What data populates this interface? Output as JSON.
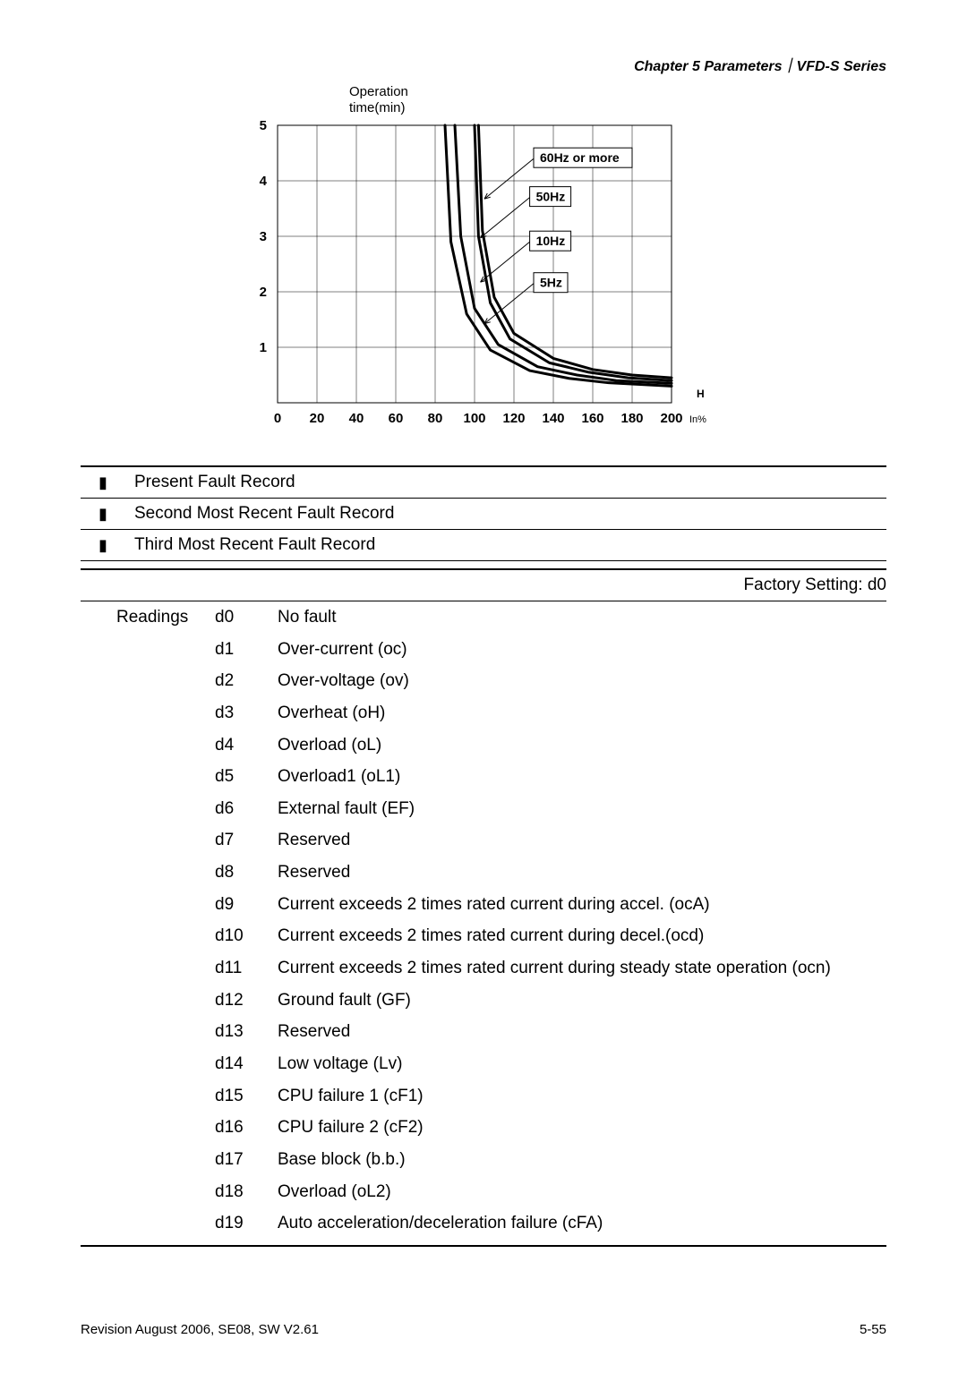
{
  "header": {
    "chapter": "Chapter 5 Parameters",
    "separator": "｜",
    "series": "VFD-S Series"
  },
  "chart": {
    "type": "line",
    "title_line1": "Operation",
    "title_line2": "time(min)",
    "x_axis_unit_label": "In%",
    "x_axis_marker": "H",
    "title_fontsize": 15,
    "axis_font_weight": "bold",
    "tick_fontsize": 15,
    "xlim": [
      0,
      200
    ],
    "ylim": [
      0,
      5
    ],
    "xtick_step": 20,
    "xticks": [
      0,
      20,
      40,
      60,
      80,
      100,
      120,
      140,
      160,
      180,
      200
    ],
    "yticks": [
      1,
      2,
      3,
      4,
      5
    ],
    "line_color": "#000000",
    "line_width_outer": 3,
    "line_width_inner": 2,
    "background_color": "#ffffff",
    "grid_color": "#000000",
    "curve_labels": [
      {
        "text": "60Hz or more",
        "x": 130,
        "y": 4.4
      },
      {
        "text": "50Hz",
        "x": 128,
        "y": 3.7
      },
      {
        "text": "10Hz",
        "x": 128,
        "y": 2.9
      },
      {
        "text": "5Hz",
        "x": 130,
        "y": 2.15
      }
    ],
    "curves": [
      {
        "name": "60Hz",
        "points": [
          [
            102,
            5
          ],
          [
            104,
            3.1
          ],
          [
            110,
            1.9
          ],
          [
            120,
            1.25
          ],
          [
            140,
            0.8
          ],
          [
            160,
            0.6
          ],
          [
            180,
            0.5
          ],
          [
            200,
            0.45
          ]
        ]
      },
      {
        "name": "50Hz",
        "points": [
          [
            100,
            5
          ],
          [
            102,
            3.0
          ],
          [
            108,
            1.8
          ],
          [
            118,
            1.15
          ],
          [
            138,
            0.72
          ],
          [
            158,
            0.55
          ],
          [
            178,
            0.45
          ],
          [
            200,
            0.4
          ]
        ]
      },
      {
        "name": "10Hz",
        "points": [
          [
            90,
            5
          ],
          [
            93,
            3.0
          ],
          [
            100,
            1.7
          ],
          [
            112,
            1.05
          ],
          [
            132,
            0.65
          ],
          [
            152,
            0.5
          ],
          [
            172,
            0.4
          ],
          [
            200,
            0.35
          ]
        ]
      },
      {
        "name": "5Hz",
        "points": [
          [
            85,
            5
          ],
          [
            88,
            2.9
          ],
          [
            96,
            1.6
          ],
          [
            108,
            0.95
          ],
          [
            128,
            0.58
          ],
          [
            148,
            0.44
          ],
          [
            168,
            0.36
          ],
          [
            200,
            0.3
          ]
        ]
      }
    ]
  },
  "fault_records": [
    {
      "label": "Present Fault Record"
    },
    {
      "label": "Second Most Recent Fault Record"
    },
    {
      "label": "Third Most Recent Fault Record"
    }
  ],
  "factory_setting_label": "Factory Setting: d0",
  "readings_heading": "Readings",
  "readings": [
    {
      "code": "d0",
      "desc": "No fault"
    },
    {
      "code": "d1",
      "desc": "Over-current (oc)"
    },
    {
      "code": "d2",
      "desc": "Over-voltage (ov)"
    },
    {
      "code": "d3",
      "desc": "Overheat (oH)"
    },
    {
      "code": "d4",
      "desc": "Overload (oL)"
    },
    {
      "code": "d5",
      "desc": "Overload1 (oL1)"
    },
    {
      "code": "d6",
      "desc": "External fault (EF)"
    },
    {
      "code": "d7",
      "desc": "Reserved"
    },
    {
      "code": "d8",
      "desc": "Reserved"
    },
    {
      "code": "d9",
      "desc": "Current exceeds 2 times rated current during accel. (ocA)"
    },
    {
      "code": "d10",
      "desc": "Current exceeds 2 times rated current during decel.(ocd)"
    },
    {
      "code": "d11",
      "desc": "Current exceeds 2 times rated current during steady state operation (ocn)"
    },
    {
      "code": "d12",
      "desc": "Ground fault (GF)"
    },
    {
      "code": "d13",
      "desc": "Reserved"
    },
    {
      "code": "d14",
      "desc": "Low voltage (Lv)"
    },
    {
      "code": "d15",
      "desc": "CPU failure 1 (cF1)"
    },
    {
      "code": "d16",
      "desc": "CPU failure 2 (cF2)"
    },
    {
      "code": "d17",
      "desc": "Base block (b.b.)"
    },
    {
      "code": "d18",
      "desc": "Overload (oL2)"
    },
    {
      "code": "d19",
      "desc": "Auto acceleration/deceleration failure (cFA)"
    }
  ],
  "footer": {
    "left": "Revision August 2006, SE08, SW V2.61",
    "right": "5-55"
  }
}
